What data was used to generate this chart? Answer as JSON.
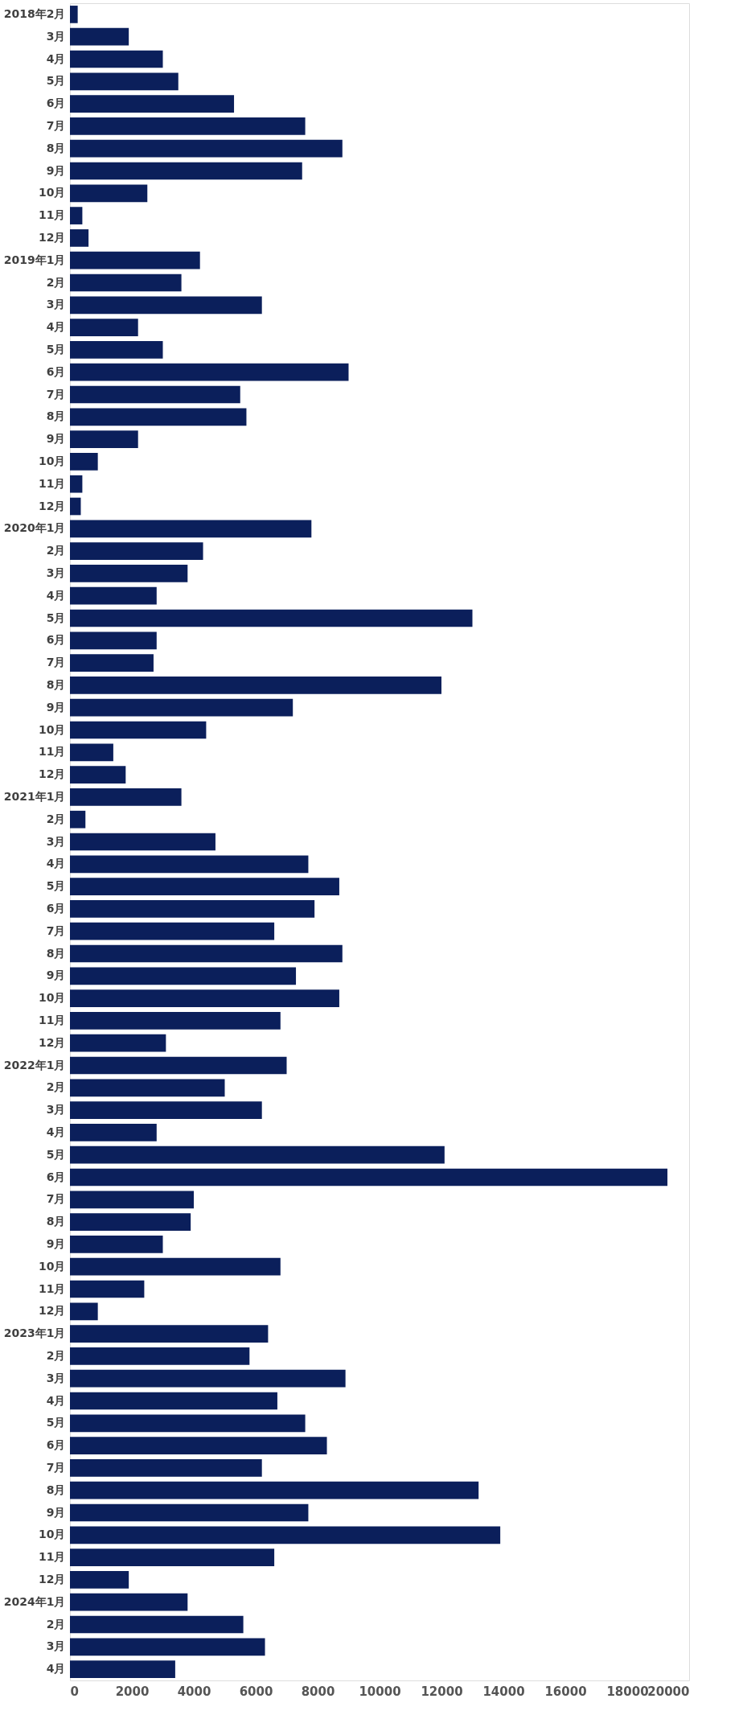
{
  "chart_data": {
    "type": "bar",
    "orientation": "horizontal",
    "categories": [
      "2018年2月",
      "3月",
      "4月",
      "5月",
      "6月",
      "7月",
      "8月",
      "9月",
      "10月",
      "11月",
      "12月",
      "2019年1月",
      "2月",
      "3月",
      "4月",
      "5月",
      "6月",
      "7月",
      "8月",
      "9月",
      "10月",
      "11月",
      "12月",
      "2020年1月",
      "2月",
      "3月",
      "4月",
      "5月",
      "6月",
      "7月",
      "8月",
      "9月",
      "10月",
      "11月",
      "12月",
      "2021年1月",
      "2月",
      "3月",
      "4月",
      "5月",
      "6月",
      "7月",
      "8月",
      "9月",
      "10月",
      "11月",
      "12月",
      "2022年1月",
      "2月",
      "3月",
      "4月",
      "5月",
      "6月",
      "7月",
      "8月",
      "9月",
      "10月",
      "11月",
      "12月",
      "2023年1月",
      "2月",
      "3月",
      "4月",
      "5月",
      "6月",
      "7月",
      "8月",
      "9月",
      "10月",
      "11月",
      "12月",
      "2024年1月",
      "2月",
      "3月",
      "4月"
    ],
    "values": [
      250,
      1900,
      3000,
      3500,
      5300,
      7600,
      8800,
      7500,
      2500,
      400,
      600,
      4200,
      3600,
      6200,
      2200,
      3000,
      9000,
      5500,
      5700,
      2200,
      900,
      400,
      350,
      7800,
      4300,
      3800,
      2800,
      13000,
      2800,
      2700,
      12000,
      7200,
      4400,
      1400,
      1800,
      3600,
      500,
      4700,
      7700,
      8700,
      7900,
      6600,
      8800,
      7300,
      8700,
      6800,
      3100,
      7000,
      5000,
      6200,
      2800,
      12100,
      19300,
      4000,
      3900,
      3000,
      6800,
      2400,
      900,
      6400,
      5800,
      8900,
      6700,
      7600,
      8300,
      6200,
      13200,
      7700,
      13900,
      6600,
      1900,
      3800,
      5600,
      6300,
      3400
    ],
    "color": "#0b1f5b",
    "xlim": [
      0,
      20000
    ],
    "xticks": [
      0,
      2000,
      4000,
      6000,
      8000,
      10000,
      12000,
      14000,
      16000,
      18000,
      20000
    ],
    "grid": false
  }
}
